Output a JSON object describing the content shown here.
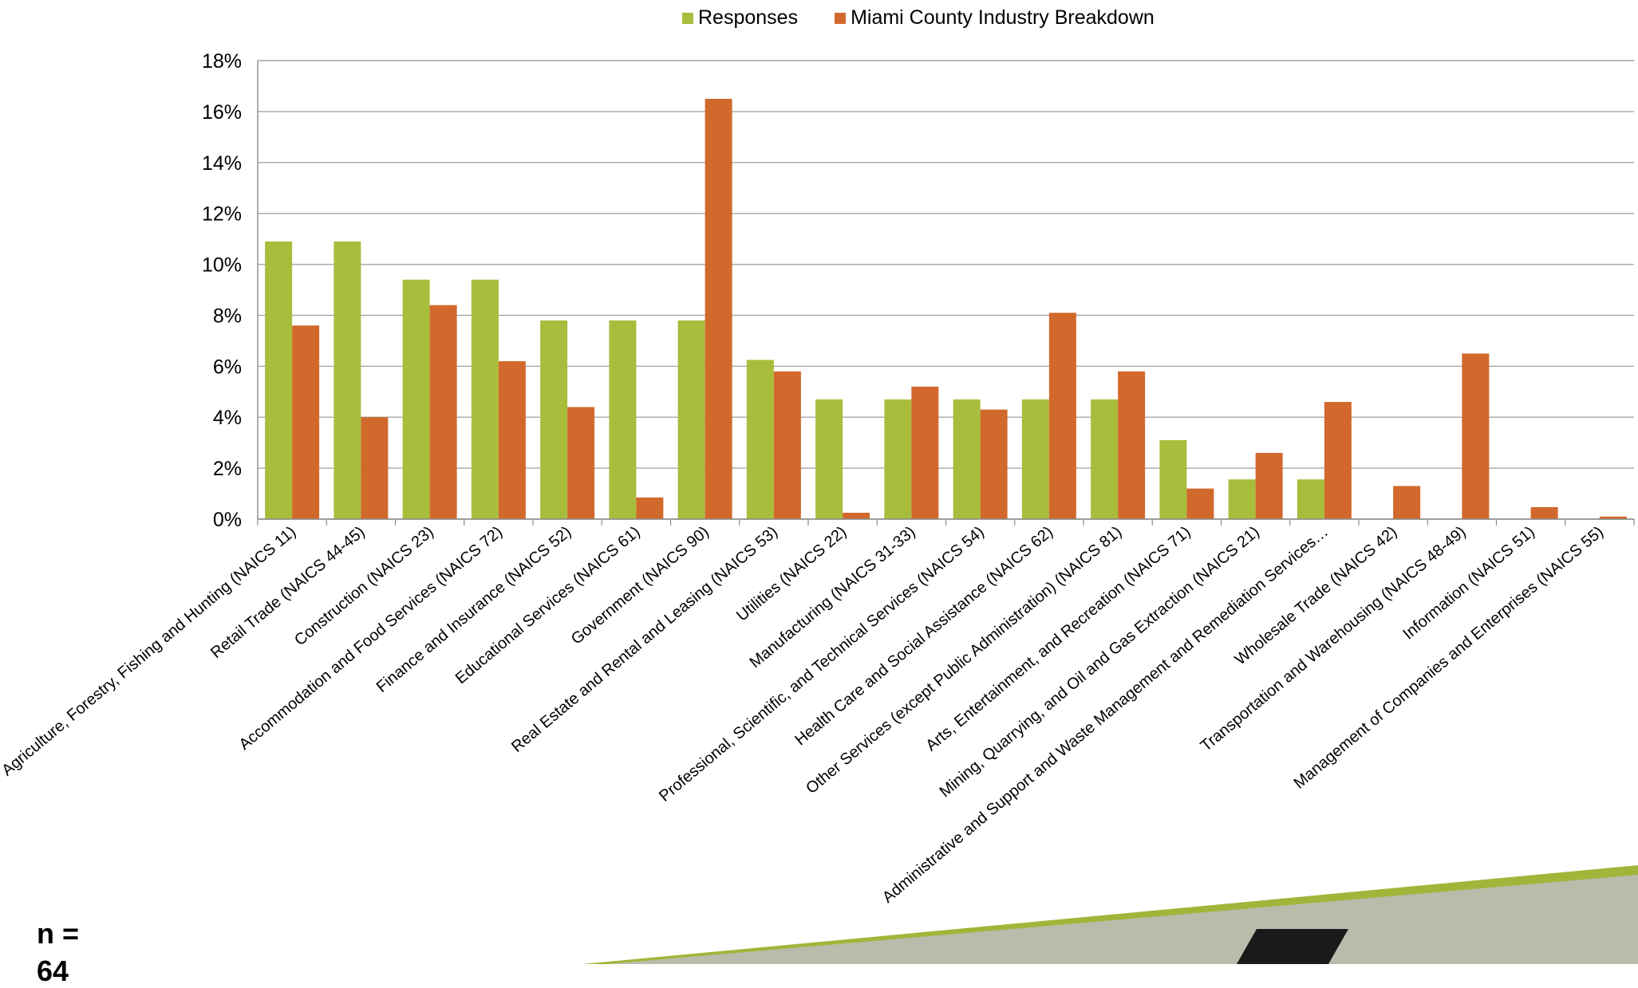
{
  "legend": {
    "series_a": "Responses",
    "series_b": "Miami County Industry Breakdown"
  },
  "colors": {
    "responses": "#a9bd3c",
    "county": "#d2692c",
    "grid": "#a6a6a6",
    "green_band": "#9fb63a"
  },
  "footer": {
    "n_label": "n =",
    "n_value_partial": "64"
  },
  "chart_data": {
    "type": "bar",
    "title": "",
    "xlabel": "",
    "ylabel": "",
    "ylim": [
      0,
      18
    ],
    "ytick_step": 2,
    "ytick_suffix": "%",
    "grid": true,
    "legend_position": "top",
    "categories": [
      "Agriculture, Forestry, Fishing and Hunting (NAICS 11)",
      "Retail Trade (NAICS 44-45)",
      "Construction (NAICS 23)",
      "Accommodation and Food Services (NAICS 72)",
      "Finance and Insurance (NAICS 52)",
      "Educational Services (NAICS 61)",
      "Government (NAICS 90)",
      "Real Estate and Rental and Leasing (NAICS 53)",
      "Utilities (NAICS 22)",
      "Manufacturing (NAICS 31-33)",
      "Professional, Scientific, and Technical Services (NAICS 54)",
      "Health Care and Social Assistance (NAICS 62)",
      "Other Services (except Public Administration) (NAICS 81)",
      "Arts, Entertainment, and Recreation (NAICS 71)",
      "Mining, Quarrying, and Oil and Gas Extraction (NAICS 21)",
      "Administrative and Support and Waste Management and Remediation Services…",
      "Wholesale Trade (NAICS 42)",
      "Transportation and Warehousing (NAICS 48-49)",
      "Information (NAICS 51)",
      "Management of Companies and Enterprises (NAICS 55)"
    ],
    "series": [
      {
        "name": "Responses",
        "values": [
          10.9,
          10.9,
          9.4,
          9.4,
          7.8,
          7.8,
          7.8,
          6.25,
          4.7,
          4.7,
          4.7,
          4.7,
          4.7,
          3.1,
          1.56,
          1.56,
          0,
          0,
          0,
          0
        ]
      },
      {
        "name": "Miami County Industry Breakdown",
        "values": [
          7.6,
          4.0,
          8.4,
          6.2,
          4.4,
          0.85,
          16.5,
          5.8,
          0.25,
          5.2,
          4.3,
          8.1,
          5.8,
          1.2,
          2.6,
          4.6,
          1.3,
          6.5,
          0.47,
          0.1
        ]
      }
    ]
  }
}
